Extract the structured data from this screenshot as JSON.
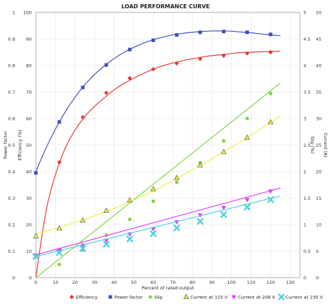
{
  "chart_data": {
    "type": "line",
    "title": "LOAD PERFORMANCE CURVE",
    "xlabel": "Percent of rated output",
    "ylabel_left_outer": "Power factor",
    "ylabel_left_inner": "Efficiency (%)",
    "ylabel_right_inner": "Slip (%)",
    "ylabel_right_outer": "Current (A)",
    "xlim": [
      0,
      135
    ],
    "x_ticks": [
      "0",
      "10",
      "20",
      "30",
      "40",
      "50",
      "60",
      "70",
      "80",
      "90",
      "100",
      "110",
      "120",
      "130"
    ],
    "y_left_outer_ticks": [
      "0",
      "0.1",
      "0.2",
      "0.3",
      "0.4",
      "0.5",
      "0.6",
      "0.7",
      "0.8",
      "0.9",
      "1"
    ],
    "y_left_inner_ticks": [
      "0",
      "10",
      "20",
      "30",
      "40",
      "50",
      "60",
      "70",
      "80",
      "90",
      "100"
    ],
    "y_right_inner_ticks": [
      "0",
      "0.5",
      "1",
      "1.5",
      "2",
      "2.5",
      "3",
      "3.5",
      "4",
      "4.5",
      "5"
    ],
    "y_right_outer_ticks": [
      "0",
      "5",
      "10",
      "15",
      "20",
      "25",
      "30",
      "35",
      "40",
      "45",
      "50"
    ],
    "grid": true,
    "legend_position": "bottom",
    "series": [
      {
        "name": "Efficiency",
        "axis": "efficiency",
        "color": "#e53935",
        "marker": "diamond",
        "x": [
          12,
          24,
          36,
          48,
          60,
          72,
          84,
          96,
          108,
          120
        ],
        "y": [
          43.5,
          60.5,
          69.7,
          75.2,
          78.6,
          80.8,
          82.5,
          83.7,
          84.6,
          85.0
        ],
        "curve_x": [
          0,
          5,
          10,
          15,
          20,
          25,
          30,
          35,
          40,
          45,
          50,
          55,
          60,
          65,
          70,
          75,
          80,
          85,
          90,
          95,
          100,
          105,
          110,
          115,
          120,
          125
        ],
        "curve_y": [
          0,
          24.3,
          38.8,
          48.8,
          55.6,
          60.7,
          64.6,
          67.8,
          70.8,
          73.2,
          75.2,
          77.0,
          78.6,
          79.9,
          80.9,
          81.8,
          82.5,
          83.2,
          83.7,
          84.1,
          84.5,
          84.8,
          85.0,
          85.2,
          85.3,
          85.4
        ]
      },
      {
        "name": "Power factor",
        "axis": "power_factor",
        "color": "#3f51b5",
        "marker": "square",
        "x": [
          0,
          12,
          24,
          36,
          48,
          60,
          72,
          84,
          96,
          108,
          120
        ],
        "y": [
          0.395,
          0.587,
          0.717,
          0.802,
          0.86,
          0.895,
          0.915,
          0.925,
          0.928,
          0.925,
          0.917
        ],
        "curve_x": [
          0,
          5,
          10,
          15,
          20,
          25,
          30,
          35,
          40,
          45,
          50,
          55,
          60,
          65,
          70,
          75,
          80,
          85,
          90,
          95,
          100,
          105,
          110,
          115,
          120,
          125
        ],
        "curve_y": [
          0.4,
          0.485,
          0.56,
          0.625,
          0.68,
          0.727,
          0.766,
          0.798,
          0.826,
          0.849,
          0.868,
          0.884,
          0.897,
          0.907,
          0.915,
          0.921,
          0.925,
          0.928,
          0.93,
          0.93,
          0.929,
          0.926,
          0.923,
          0.919,
          0.915,
          0.912
        ]
      },
      {
        "name": "Slip",
        "axis": "slip",
        "color": "#7cd63a",
        "marker": "circle",
        "x": [
          12,
          24,
          36,
          48,
          60,
          72,
          84,
          96,
          108,
          120
        ],
        "y": [
          0.25,
          0.52,
          0.8,
          1.1,
          1.44,
          1.8,
          2.17,
          2.58,
          3.0,
          3.47
        ],
        "curve_x": [
          0,
          125
        ],
        "curve_y": [
          0.0,
          3.67
        ]
      },
      {
        "name": "Current at 115 V",
        "axis": "current",
        "color": "#f2ef47",
        "marker": "triangle",
        "x": [
          0,
          12,
          24,
          36,
          48,
          60,
          72,
          84,
          96,
          108,
          120
        ],
        "y": [
          7.8,
          9.3,
          10.8,
          12.6,
          14.6,
          16.7,
          18.8,
          21.2,
          23.7,
          26.4,
          29.3
        ],
        "curve_x": [
          0,
          25,
          50,
          75,
          100,
          125
        ],
        "curve_y": [
          8.2,
          11.0,
          14.6,
          19.3,
          24.6,
          30.5
        ]
      },
      {
        "name": "Current at 208 V",
        "axis": "current",
        "color": "#e040fb",
        "marker": "inverted-triangle",
        "x": [
          0,
          12,
          24,
          36,
          48,
          60,
          72,
          84,
          96,
          108,
          120
        ],
        "y": [
          4.2,
          5.2,
          6.1,
          7.0,
          8.2,
          9.2,
          10.5,
          11.8,
          13.2,
          14.7,
          16.3
        ],
        "curve_x": [
          0,
          125
        ],
        "curve_y": [
          4.3,
          16.9
        ]
      },
      {
        "name": "Current at 230 V",
        "axis": "current",
        "color": "#4dd0e1",
        "marker": "x",
        "x": [
          0,
          12,
          24,
          36,
          48,
          60,
          72,
          84,
          96,
          108,
          120
        ],
        "y": [
          4.0,
          4.7,
          5.5,
          6.3,
          7.3,
          8.3,
          9.4,
          10.6,
          11.9,
          13.3,
          14.7
        ],
        "curve_x": [
          0,
          125
        ],
        "curve_y": [
          4.0,
          15.4
        ]
      }
    ]
  }
}
